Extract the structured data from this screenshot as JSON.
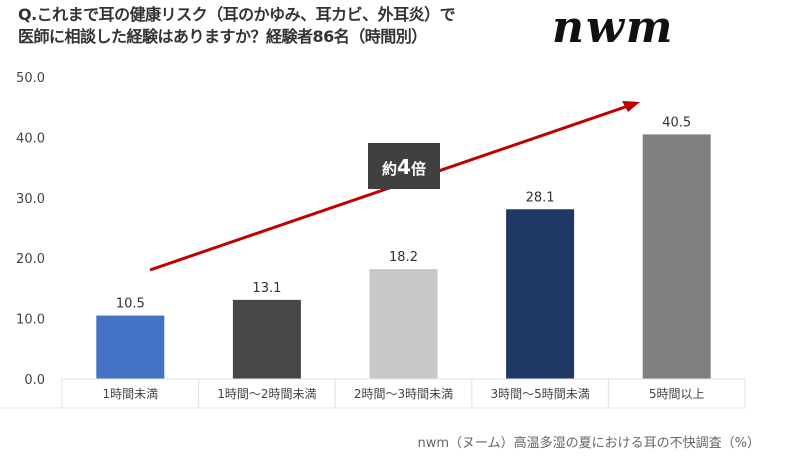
{
  "title_line1": "Q.これまで耳の健康リスク（耳のかゆみ、耳カビ、外耳炎）で",
  "title_line2": "医師に相談した経験はありますか？経験者86名（時間別）",
  "logo": "nwm",
  "source": "nwm（ヌーム）高温多湿の夏における耳の不快調査（%）",
  "chart_data": {
    "type": "bar",
    "categories": [
      "1時間未満",
      "1時間～2時間未満",
      "2時間～3時間未満",
      "3時間～5時間未満",
      "5時間以上"
    ],
    "values": [
      10.5,
      13.1,
      18.2,
      28.1,
      40.5
    ],
    "colors": [
      "#4472C4",
      "#474747",
      "#C8C8C8",
      "#1F3864",
      "#7F7F7F"
    ],
    "ylim": [
      0,
      50
    ],
    "yticks": [
      "0.0",
      "10.0",
      "20.0",
      "30.0",
      "40.0",
      "50.0"
    ],
    "annotation": {
      "prefix": "約",
      "number": "4",
      "suffix": "倍"
    },
    "arrow_color": "#C00000",
    "grid": false
  }
}
